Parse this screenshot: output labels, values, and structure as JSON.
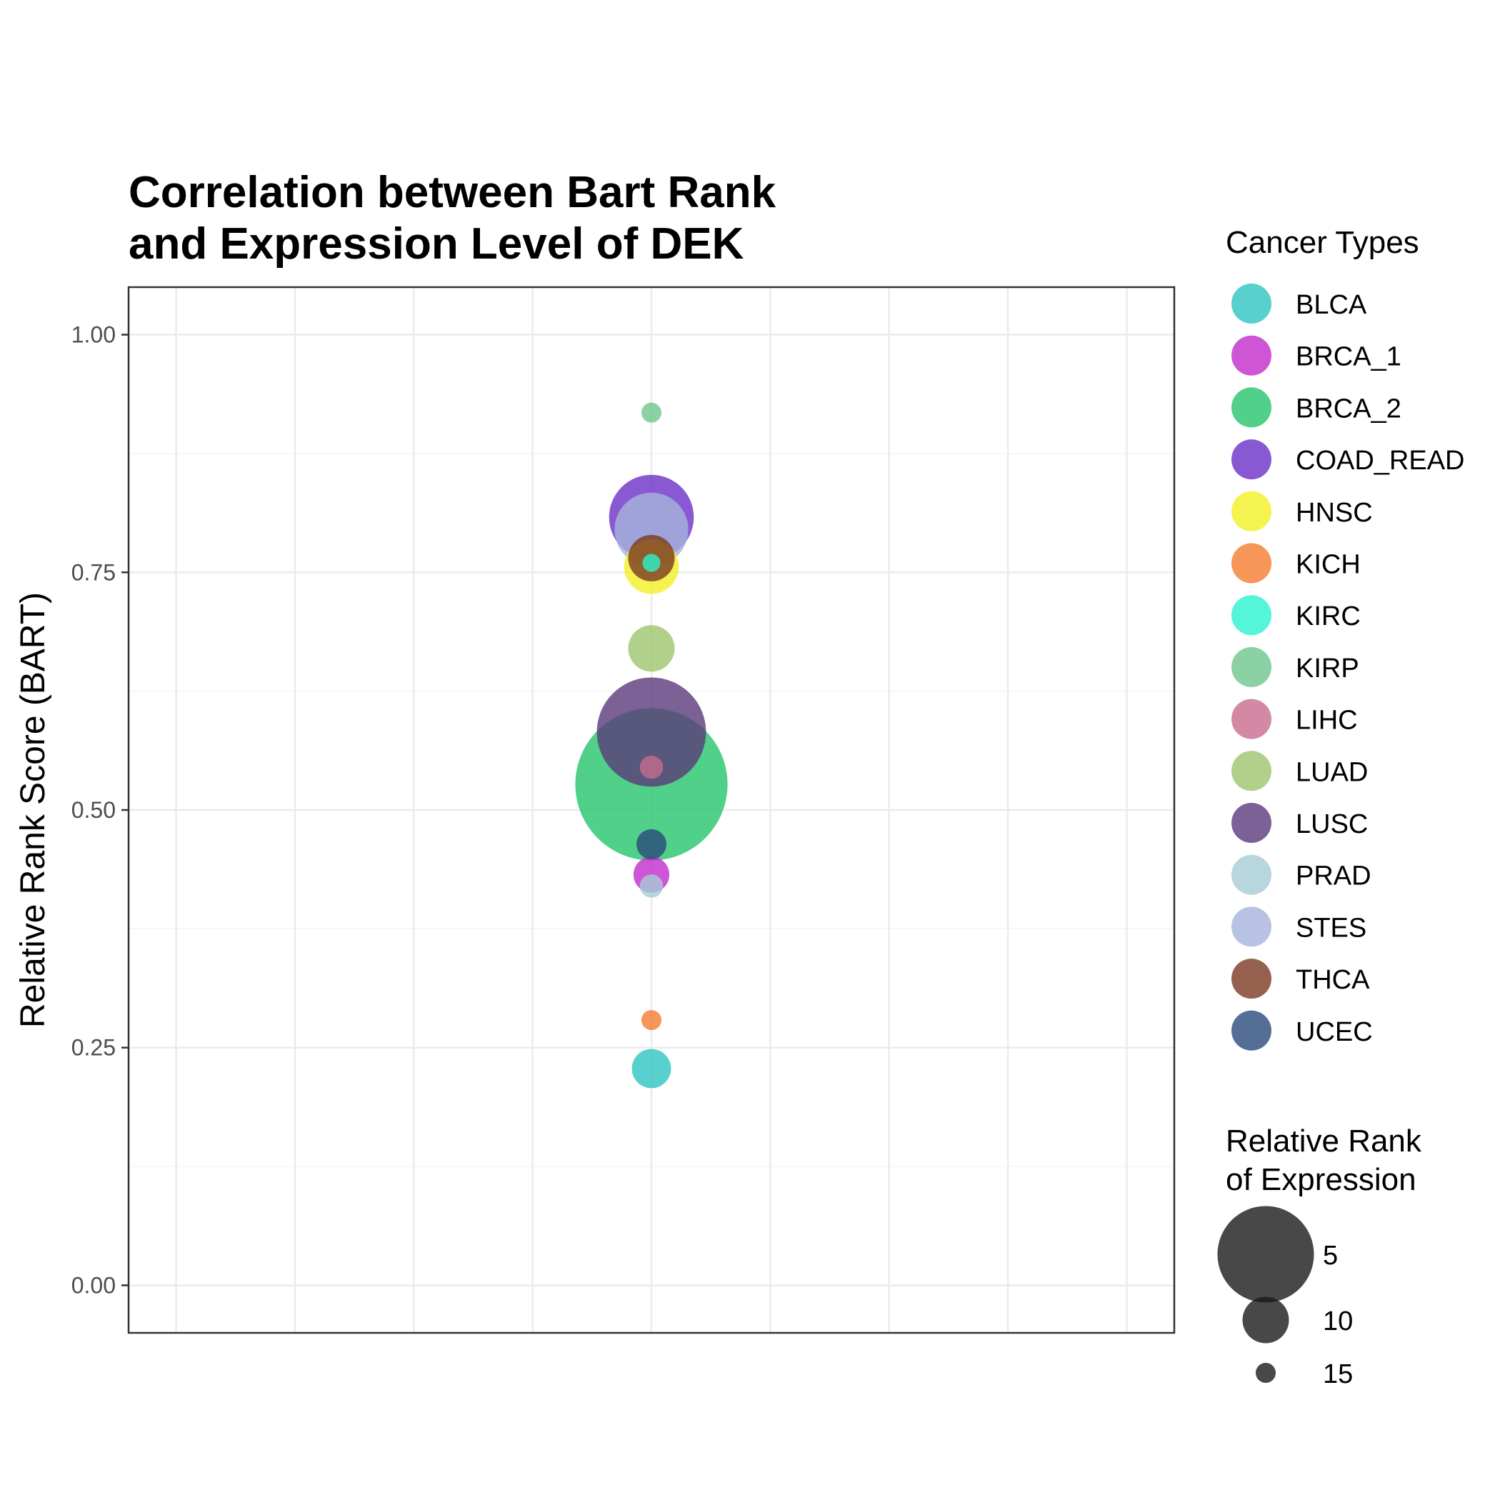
{
  "chart_data": {
    "type": "scatter",
    "title_lines": [
      "Correlation between Bart Rank",
      "and Expression Level of DEK"
    ],
    "xlabel": "",
    "ylabel": "Relative Rank Score (BART)",
    "ylim": [
      -0.05,
      1.05
    ],
    "y_ticks": [
      0.0,
      0.25,
      0.5,
      0.75,
      1.0
    ],
    "y_tick_labels": [
      "0.00",
      "0.25",
      "0.50",
      "0.75",
      "1.00"
    ],
    "grid": true,
    "legend_placement": "right",
    "series": [
      {
        "name": "BLCA",
        "color": "#2ec4c0",
        "y": 0.228,
        "expression_rank": 11
      },
      {
        "name": "BRCA_1",
        "color": "#c22bcc",
        "y": 0.432,
        "expression_rank": 11.5
      },
      {
        "name": "BRCA_2",
        "color": "#25c46c",
        "y": 0.527,
        "expression_rank": 1
      },
      {
        "name": "COAD_READ",
        "color": "#6a2fc8",
        "y": 0.808,
        "expression_rank": 6
      },
      {
        "name": "HNSC",
        "color": "#f2f024",
        "y": 0.756,
        "expression_rank": 9
      },
      {
        "name": "KICH",
        "color": "#f47c30",
        "y": 0.279,
        "expression_rank": 15
      },
      {
        "name": "KIRC",
        "color": "#2af2cf",
        "y": 0.76,
        "expression_rank": 16
      },
      {
        "name": "KIRP",
        "color": "#6ec68c",
        "y": 0.918,
        "expression_rank": 15
      },
      {
        "name": "LIHC",
        "color": "#c86c8c",
        "y": 0.545,
        "expression_rank": 14
      },
      {
        "name": "LUAD",
        "color": "#9ec46c",
        "y": 0.67,
        "expression_rank": 10
      },
      {
        "name": "LUSC",
        "color": "#5a3a7a",
        "y": 0.582,
        "expression_rank": 4
      },
      {
        "name": "PRAD",
        "color": "#a6ccd6",
        "y": 0.42,
        "expression_rank": 14
      },
      {
        "name": "STES",
        "color": "#a6b4dc",
        "y": 0.795,
        "expression_rank": 7
      },
      {
        "name": "THCA",
        "color": "#7a3a22",
        "y": 0.765,
        "expression_rank": 10
      },
      {
        "name": "UCEC",
        "color": "#2a4a7a",
        "y": 0.464,
        "expression_rank": 12.5
      }
    ],
    "legend_cancer_title": "Cancer Types",
    "legend_size_title_lines": [
      "Relative Rank",
      "of Expression"
    ],
    "size_legend": [
      {
        "label": "5",
        "value": 5
      },
      {
        "label": "10",
        "value": 10
      },
      {
        "label": "15",
        "value": 15
      }
    ]
  }
}
